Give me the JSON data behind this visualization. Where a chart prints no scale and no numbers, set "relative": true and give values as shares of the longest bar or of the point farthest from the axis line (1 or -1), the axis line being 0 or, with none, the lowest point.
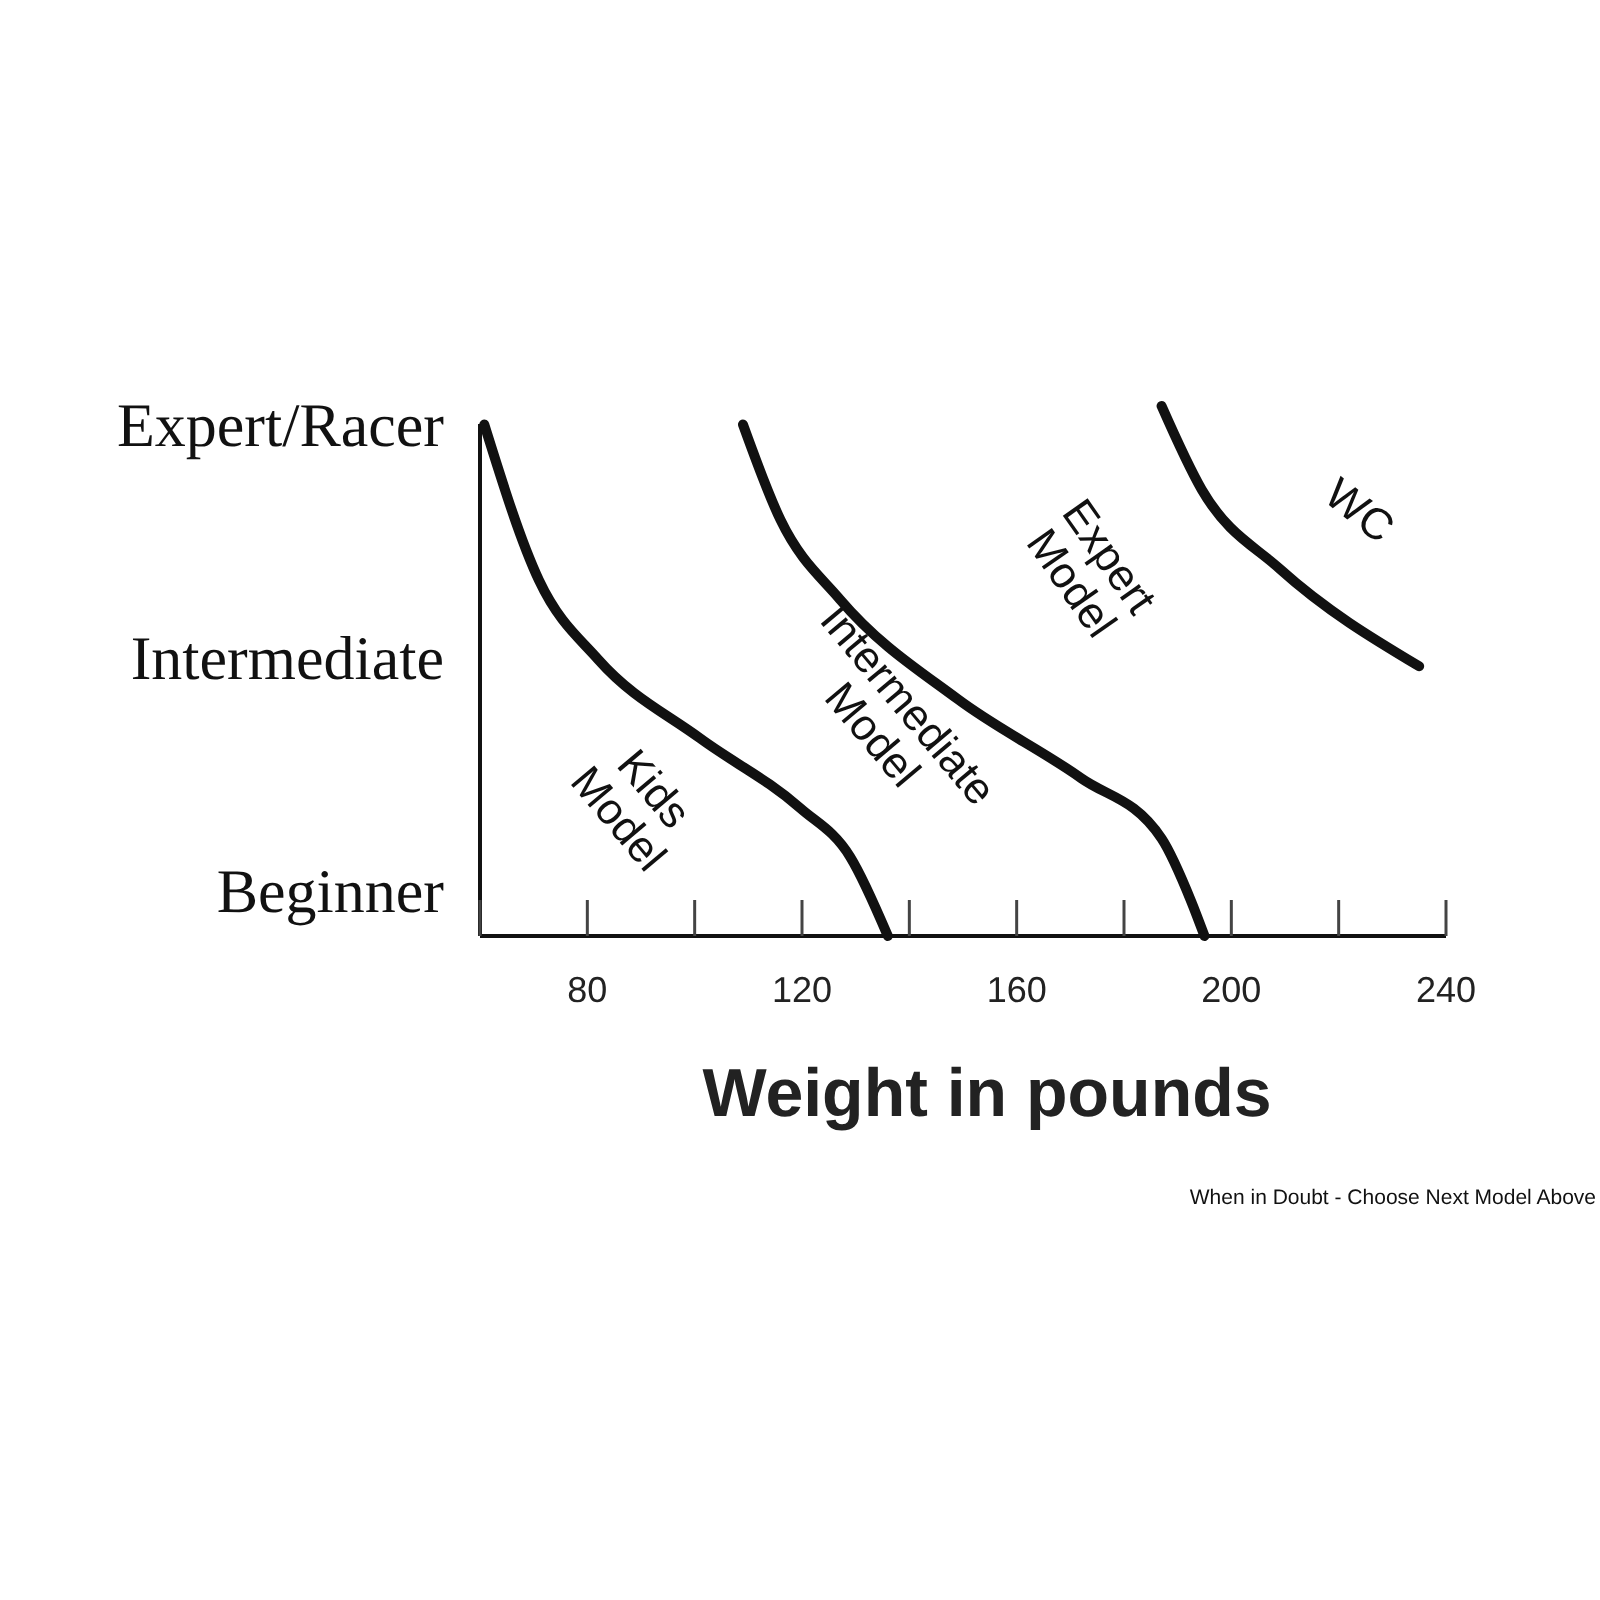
{
  "chart_data": {
    "type": "line",
    "xlabel": "Weight in pounds",
    "relative": true,
    "xlim": [
      60,
      240
    ],
    "xticks": [
      80,
      120,
      160,
      200,
      240
    ],
    "y_categories": [
      "Expert/Racer",
      "Intermediate",
      "Beginner"
    ],
    "grid": false,
    "marker": "none",
    "line_style": "solid",
    "series": [
      {
        "color": "#111111",
        "x": [
          60.8,
          71,
          82,
          101,
          119.7,
          129,
          136
        ],
        "values": [
          0.965,
          0.671,
          0.522,
          0.373,
          0.241,
          0.149,
          0
        ]
      },
      {
        "color": "#111111",
        "x": [
          109,
          116,
          127,
          149,
          172,
          187,
          192.5,
          195
        ],
        "values": [
          0.965,
          0.785,
          0.636,
          0.447,
          0.298,
          0.184,
          0.066,
          0
        ]
      },
      {
        "color": "#111111",
        "x": [
          187,
          194.5,
          209,
          235
        ],
        "values": [
          1,
          0.842,
          0.693,
          0.509
        ]
      }
    ],
    "annotations": [
      "Kids Model",
      "Intermediate Model",
      "Expert Model",
      "WC",
      "When in Doubt - Choose Next Model Above"
    ]
  }
}
